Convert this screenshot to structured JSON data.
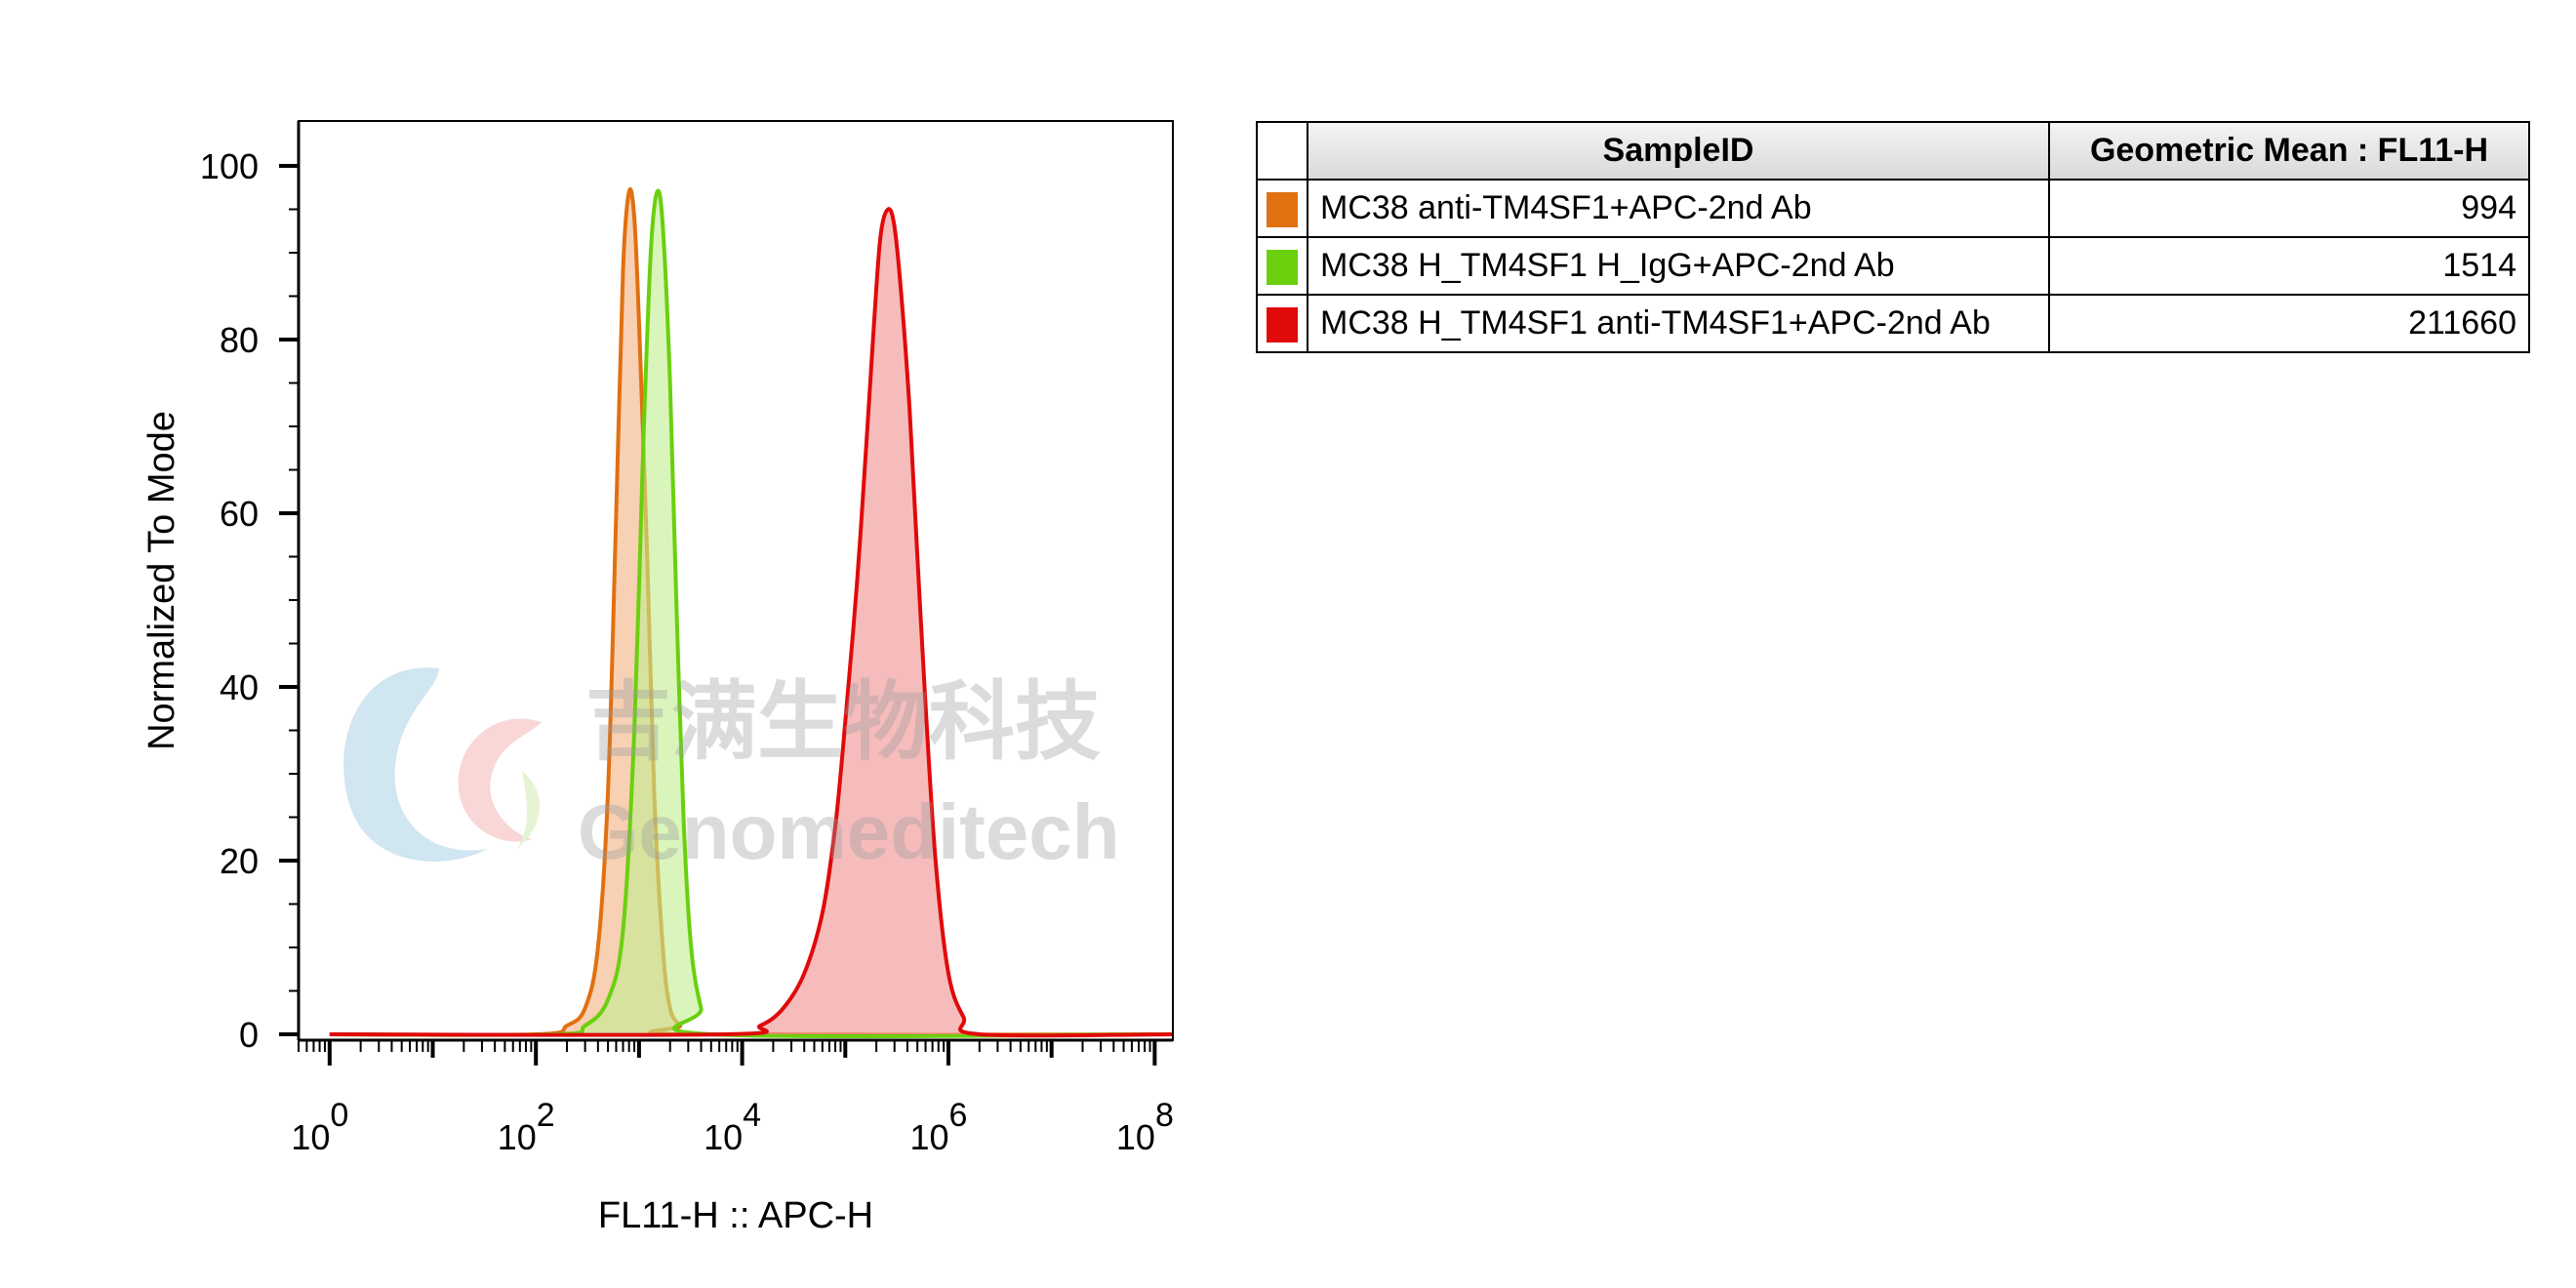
{
  "chart_data": {
    "type": "area",
    "title": "",
    "xlabel": "FL11-H :: APC-H",
    "ylabel": "Normalized To Mode",
    "x_scale": "log",
    "xlim": [
      0.5,
      150000000
    ],
    "ylim": [
      0,
      100
    ],
    "x_ticks": [
      {
        "base": "10",
        "exp": "0",
        "value": 1
      },
      {
        "base": "10",
        "exp": "2",
        "value": 100
      },
      {
        "base": "10",
        "exp": "4",
        "value": 10000
      },
      {
        "base": "10",
        "exp": "6",
        "value": 1000000
      },
      {
        "base": "10",
        "exp": "8",
        "value": 100000000
      }
    ],
    "y_ticks": [
      0,
      20,
      40,
      60,
      80,
      100
    ],
    "grid": false,
    "series": [
      {
        "name": "MC38 anti-TM4SF1+APC-2nd Ab",
        "color": "#e07010",
        "fill": "#f3b080",
        "x": [
          1,
          100,
          200,
          300,
          400,
          500,
          600,
          700,
          800,
          900,
          1000,
          1200,
          1400,
          1700,
          2000,
          2500,
          3000,
          150000000
        ],
        "y": [
          0,
          0,
          1,
          3,
          10,
          28,
          60,
          88,
          97,
          94,
          82,
          55,
          28,
          10,
          3,
          1,
          0,
          0
        ]
      },
      {
        "name": "MC38 H_TM4SF1 H_IgG+APC-2nd Ab",
        "color": "#6ad00e",
        "fill": "#bfee90",
        "x": [
          1,
          150,
          300,
          500,
          700,
          900,
          1100,
          1300,
          1500,
          1700,
          2000,
          2300,
          2700,
          3200,
          4000,
          5000,
          150000000
        ],
        "y": [
          0,
          0,
          1,
          4,
          12,
          35,
          68,
          90,
          97,
          93,
          75,
          50,
          25,
          10,
          3,
          0,
          0
        ]
      },
      {
        "name": "MC38 H_TM4SF1 anti-TM4SF1+APC-2nd Ab",
        "color": "#e00a0a",
        "fill": "#f09090",
        "x": [
          1,
          7000,
          15000,
          25000,
          40000,
          60000,
          80000,
          100000,
          130000,
          160000,
          190000,
          220000,
          260000,
          300000,
          350000,
          420000,
          500000,
          600000,
          750000,
          1000000,
          1400000,
          2000000,
          150000000
        ],
        "y": [
          0,
          0,
          1,
          3,
          7,
          14,
          24,
          36,
          52,
          68,
          82,
          92,
          95,
          93,
          85,
          72,
          55,
          38,
          20,
          7,
          2,
          0,
          0
        ]
      }
    ]
  },
  "table": {
    "header_sample": "SampleID",
    "header_mean": "Geometric Mean : FL11-H",
    "rows": [
      {
        "sample": "MC38 anti-TM4SF1+APC-2nd Ab",
        "mean": "994",
        "color": "#e07010"
      },
      {
        "sample": "MC38 H_TM4SF1 H_IgG+APC-2nd Ab",
        "mean": "1514",
        "color": "#6ad00e"
      },
      {
        "sample": "MC38 H_TM4SF1 anti-TM4SF1+APC-2nd Ab",
        "mean": "211660",
        "color": "#e00a0a"
      }
    ]
  },
  "watermark": {
    "chinese": "吉满生物科技",
    "brand": "Genomeditech"
  }
}
